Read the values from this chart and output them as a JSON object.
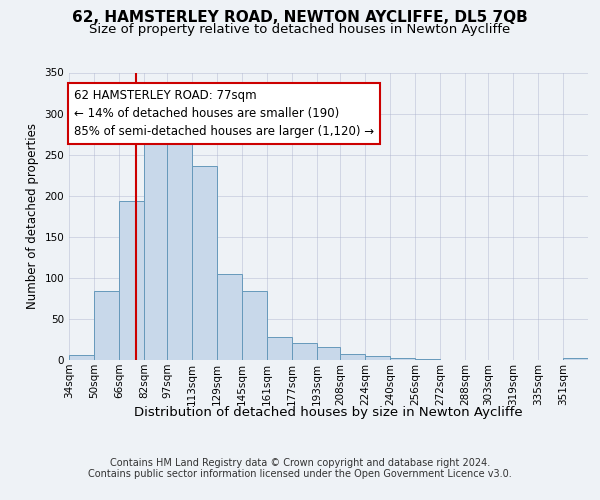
{
  "title": "62, HAMSTERLEY ROAD, NEWTON AYCLIFFE, DL5 7QB",
  "subtitle": "Size of property relative to detached houses in Newton Aycliffe",
  "xlabel": "Distribution of detached houses by size in Newton Aycliffe",
  "ylabel": "Number of detached properties",
  "bar_labels": [
    "34sqm",
    "50sqm",
    "66sqm",
    "82sqm",
    "97sqm",
    "113sqm",
    "129sqm",
    "145sqm",
    "161sqm",
    "177sqm",
    "193sqm",
    "208sqm",
    "224sqm",
    "240sqm",
    "256sqm",
    "272sqm",
    "288sqm",
    "303sqm",
    "319sqm",
    "335sqm",
    "351sqm"
  ],
  "bar_values": [
    6,
    84,
    194,
    275,
    265,
    236,
    105,
    84,
    28,
    21,
    16,
    7,
    5,
    2,
    1,
    0,
    0,
    0,
    0,
    0,
    2
  ],
  "bar_color": "#c8d8ea",
  "bar_edge_color": "#6699bb",
  "annotation_title": "62 HAMSTERLEY ROAD: 77sqm",
  "annotation_line1": "← 14% of detached houses are smaller (190)",
  "annotation_line2": "85% of semi-detached houses are larger (1,120) →",
  "annotation_box_color": "#ffffff",
  "annotation_box_edge": "#cc0000",
  "vline_x": 77,
  "vline_color": "#cc0000",
  "bin_edges": [
    34,
    50,
    66,
    82,
    97,
    113,
    129,
    145,
    161,
    177,
    193,
    208,
    224,
    240,
    256,
    272,
    288,
    303,
    319,
    335,
    351,
    367
  ],
  "ylim": [
    0,
    350
  ],
  "yticks": [
    0,
    50,
    100,
    150,
    200,
    250,
    300,
    350
  ],
  "footer_line1": "Contains HM Land Registry data © Crown copyright and database right 2024.",
  "footer_line2": "Contains public sector information licensed under the Open Government Licence v3.0.",
  "title_fontsize": 11,
  "subtitle_fontsize": 9.5,
  "xlabel_fontsize": 9.5,
  "ylabel_fontsize": 8.5,
  "tick_fontsize": 7.5,
  "annotation_fontsize": 8.5,
  "footer_fontsize": 7,
  "background_color": "#eef2f6",
  "plot_background": "#eef2f6",
  "grid_color": "#aab0cc",
  "grid_alpha": 0.6
}
